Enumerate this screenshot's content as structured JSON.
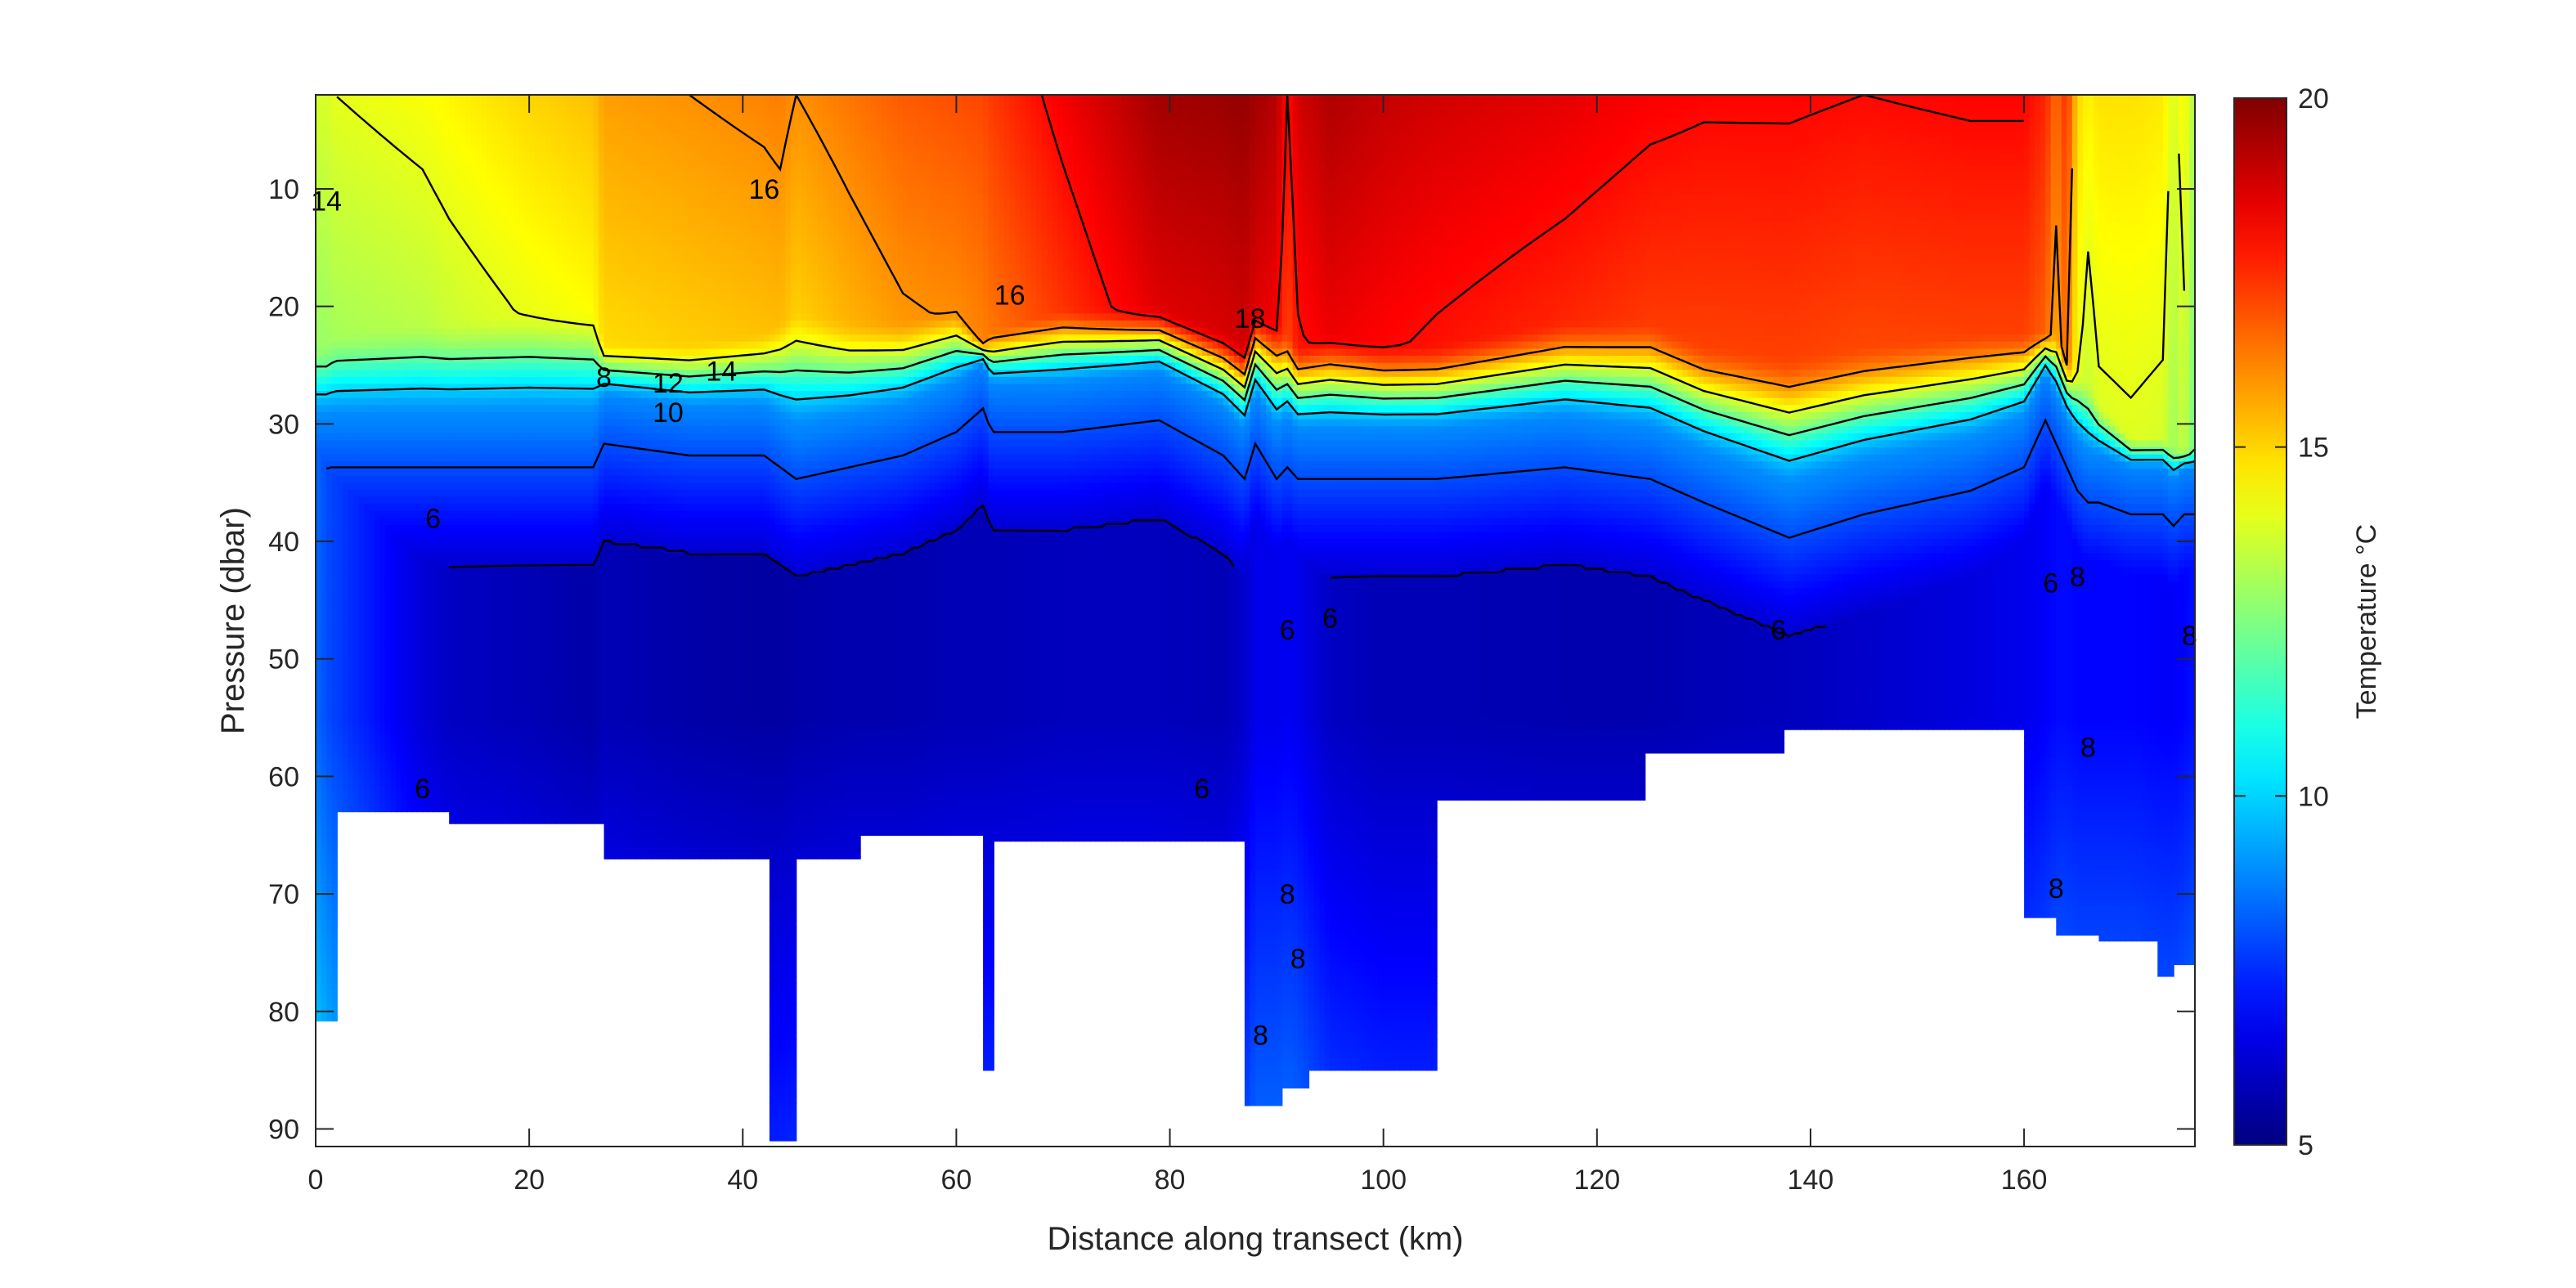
{
  "chart_data": {
    "type": "heatmap",
    "title": "",
    "xlabel": "Distance along transect (km)",
    "ylabel": "Pressure (dbar)",
    "xlim": [
      0,
      176
    ],
    "ylim": [
      2,
      91.5
    ],
    "y_reversed": true,
    "x_ticks": [
      0,
      20,
      40,
      60,
      80,
      100,
      120,
      140,
      160
    ],
    "y_ticks": [
      10,
      20,
      30,
      40,
      50,
      60,
      70,
      80,
      90
    ],
    "x_tick_labels": [
      "0",
      "20",
      "40",
      "60",
      "80",
      "100",
      "120",
      "140",
      "160"
    ],
    "y_tick_labels": [
      "10",
      "20",
      "30",
      "40",
      "50",
      "60",
      "70",
      "80",
      "90"
    ],
    "colorbar": {
      "label": "Temperature °C",
      "range": [
        5,
        20
      ],
      "ticks": [
        5,
        10,
        15,
        20
      ],
      "tick_labels": [
        "5",
        "10",
        "15",
        "20"
      ],
      "colormap": "jet"
    },
    "contour_levels": [
      6,
      8,
      10,
      12,
      14,
      16,
      18
    ],
    "contour_labels": [
      {
        "text": "14",
        "x": 1,
        "y": 11
      },
      {
        "text": "16",
        "x": 42,
        "y": 10
      },
      {
        "text": "16",
        "x": 65,
        "y": 19
      },
      {
        "text": "18",
        "x": 87.5,
        "y": 21
      },
      {
        "text": "8",
        "x": 27,
        "y": 26
      },
      {
        "text": "12",
        "x": 33,
        "y": 26.5
      },
      {
        "text": "14",
        "x": 38,
        "y": 25.5
      },
      {
        "text": "10",
        "x": 33,
        "y": 29
      },
      {
        "text": "6",
        "x": 11,
        "y": 38
      },
      {
        "text": "6",
        "x": 10,
        "y": 61
      },
      {
        "text": "6",
        "x": 83,
        "y": 61
      },
      {
        "text": "6",
        "x": 91,
        "y": 47.5
      },
      {
        "text": "6",
        "x": 95,
        "y": 46.5
      },
      {
        "text": "6",
        "x": 137,
        "y": 47.5
      },
      {
        "text": "6",
        "x": 162.5,
        "y": 43.5
      },
      {
        "text": "8",
        "x": 165,
        "y": 43
      },
      {
        "text": "8",
        "x": 175.5,
        "y": 48
      },
      {
        "text": "8",
        "x": 166,
        "y": 57.5
      },
      {
        "text": "8",
        "x": 91,
        "y": 70
      },
      {
        "text": "8",
        "x": 92,
        "y": 75.5
      },
      {
        "text": "8",
        "x": 88.5,
        "y": 82
      },
      {
        "text": "8",
        "x": 163,
        "y": 69.5
      }
    ],
    "stations": [
      {
        "x0": 0,
        "x1": 1.8,
        "ybot": 80.8
      },
      {
        "x0": 1.8,
        "x1": 12.5,
        "ybot": 63
      },
      {
        "x0": 12.5,
        "x1": 27,
        "ybot": 64
      },
      {
        "x0": 27,
        "x1": 42.5,
        "ybot": 67
      },
      {
        "x0": 42.5,
        "x1": 45,
        "ybot": 91
      },
      {
        "x0": 45,
        "x1": 51,
        "ybot": 67
      },
      {
        "x0": 51,
        "x1": 62.5,
        "ybot": 65
      },
      {
        "x0": 62.5,
        "x1": 63.3,
        "ybot": 85
      },
      {
        "x0": 63.3,
        "x1": 87,
        "ybot": 65.5
      },
      {
        "x0": 87,
        "x1": 90.5,
        "ybot": 88
      },
      {
        "x0": 90.5,
        "x1": 93,
        "ybot": 86.5
      },
      {
        "x0": 93,
        "x1": 105,
        "ybot": 85
      },
      {
        "x0": 105,
        "x1": 124.5,
        "ybot": 62
      },
      {
        "x0": 124.5,
        "x1": 137.5,
        "ybot": 58
      },
      {
        "x0": 137.5,
        "x1": 160,
        "ybot": 56
      },
      {
        "x0": 160,
        "x1": 163,
        "ybot": 72
      },
      {
        "x0": 163,
        "x1": 167,
        "ybot": 73.5
      },
      {
        "x0": 167,
        "x1": 172.5,
        "ybot": 74
      },
      {
        "x0": 172.5,
        "x1": 174,
        "ybot": 77
      },
      {
        "x0": 174,
        "x1": 176,
        "ybot": 76
      }
    ],
    "profile": {
      "x": [
        0,
        1,
        1.8,
        10,
        12.5,
        20,
        26,
        27,
        35,
        42,
        43.5,
        45,
        50,
        55,
        60,
        62.5,
        63.3,
        70,
        79,
        85,
        87,
        88,
        90,
        91,
        92,
        95,
        100,
        105,
        117,
        125,
        130,
        138,
        145,
        155,
        160,
        162,
        163,
        164,
        165,
        166,
        167,
        170,
        173,
        174,
        175,
        176
      ],
      "surface_temp": [
        13.8,
        13.8,
        14.0,
        14.3,
        14.5,
        15.0,
        15.3,
        15.8,
        16.0,
        16.2,
        16.3,
        16.0,
        16.4,
        16.8,
        17.0,
        17.1,
        17.3,
        18.3,
        19.5,
        19.6,
        19.7,
        19.5,
        19.2,
        18.0,
        18.8,
        19.3,
        19.0,
        18.8,
        18.5,
        18.2,
        18.1,
        18.1,
        18.0,
        18.1,
        18.1,
        17.6,
        16.5,
        17.5,
        15.0,
        14.5,
        14.8,
        14.8,
        14.7,
        13.8,
        14.5,
        13.0
      ],
      "thermocline_top": [
        23,
        23,
        22,
        21,
        21,
        20,
        20,
        23,
        23,
        22,
        21,
        20,
        21,
        21,
        20,
        23,
        22,
        20,
        20,
        22,
        23,
        20,
        21,
        22,
        23,
        22,
        23,
        23,
        21,
        21,
        23,
        24,
        23,
        22,
        22,
        22,
        22,
        24,
        25,
        26,
        28,
        31,
        31,
        32,
        32,
        32
      ],
      "thermocline_bottom": [
        30,
        30,
        30,
        30,
        30,
        30,
        30,
        28,
        29,
        29,
        30,
        31,
        30,
        29,
        27,
        25,
        27,
        27,
        26,
        29,
        31,
        28,
        31,
        30,
        31,
        31,
        31,
        31,
        30,
        31,
        33,
        36,
        34,
        32,
        30,
        26,
        28,
        30,
        32,
        33,
        33,
        34,
        34,
        35,
        34,
        34
      ],
      "deep_temp": [
        8.6,
        8.2,
        8.0,
        6.5,
        6.2,
        6.0,
        5.8,
        6.0,
        5.8,
        5.7,
        5.7,
        5.8,
        5.9,
        5.9,
        6.0,
        6.0,
        6.0,
        6.1,
        6.1,
        6.0,
        6.3,
        6.8,
        6.8,
        6.9,
        6.8,
        6.2,
        6.0,
        6.0,
        5.9,
        5.9,
        6.0,
        6.1,
        6.3,
        6.6,
        6.8,
        7.0,
        7.2,
        7.2,
        7.1,
        7.1,
        7.1,
        7.1,
        7.0,
        7.0,
        7.1,
        7.3
      ]
    }
  }
}
